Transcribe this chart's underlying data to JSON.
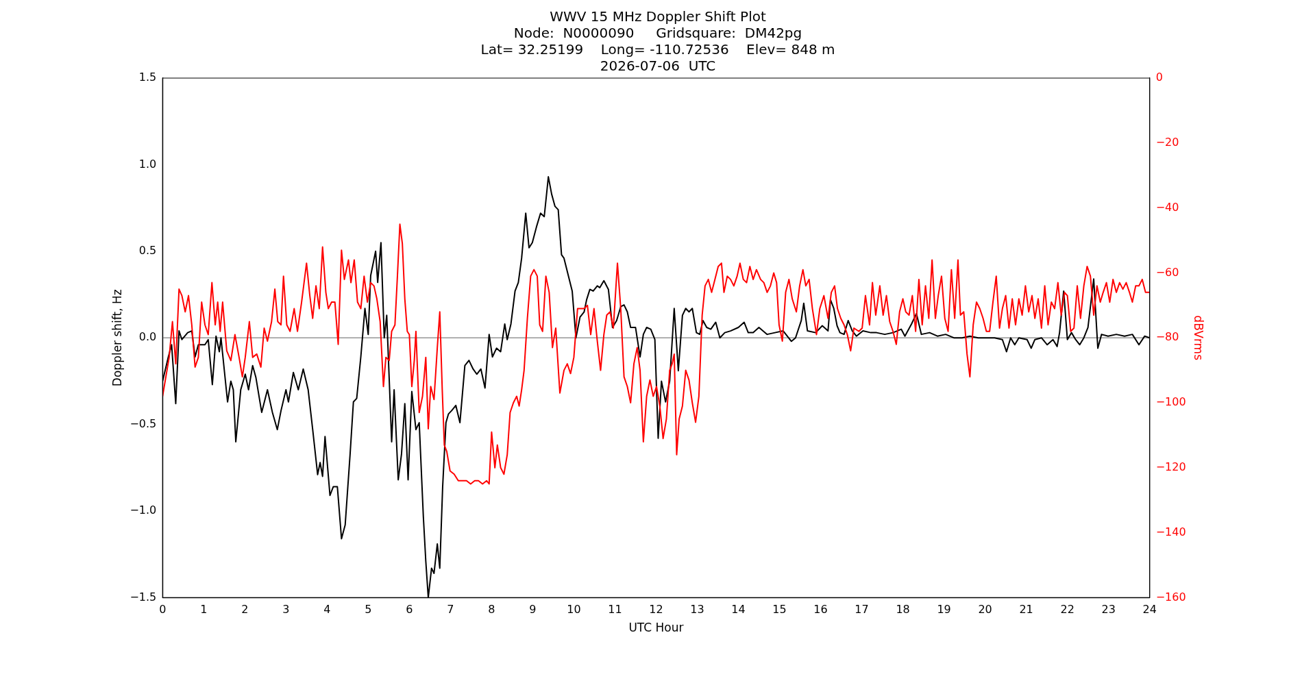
{
  "chart_data": {
    "type": "line",
    "title": "WWV 15 MHz Doppler Shift Plot\nNode:  N0000090     Gridsquare:  DM42pg\nLat= 32.25199    Long= -110.72536    Elev= 848 m\n2026-07-06  UTC",
    "xlabel": "UTC Hour",
    "ylabel": "Doppler shift, Hz",
    "y2label": "dBVrms",
    "xlim": [
      0,
      24
    ],
    "xticks": [
      0,
      1,
      2,
      3,
      4,
      5,
      6,
      7,
      8,
      9,
      10,
      11,
      12,
      13,
      14,
      15,
      16,
      17,
      18,
      19,
      20,
      21,
      22,
      23,
      24
    ],
    "ylim": [
      -1.5,
      1.5
    ],
    "yticks": [
      {
        "value": -1.5,
        "label": "−1.5"
      },
      {
        "value": -1,
        "label": "−1.0"
      },
      {
        "value": -0.5,
        "label": "−0.5"
      },
      {
        "value": 0,
        "label": "0.0"
      },
      {
        "value": 0.5,
        "label": "0.5"
      },
      {
        "value": 1,
        "label": "1.0"
      },
      {
        "value": 1.5,
        "label": "1.5"
      }
    ],
    "y2lim": [
      -160,
      0
    ],
    "y2ticks": [
      {
        "value": -160,
        "label": "−160"
      },
      {
        "value": -140,
        "label": "−140"
      },
      {
        "value": -120,
        "label": "−120"
      },
      {
        "value": -100,
        "label": "−100"
      },
      {
        "value": -80,
        "label": "−80"
      },
      {
        "value": -60,
        "label": "−60"
      },
      {
        "value": -40,
        "label": "−40"
      },
      {
        "value": -20,
        "label": "−20"
      },
      {
        "value": 0,
        "label": "0"
      }
    ],
    "grid": false,
    "legend": false,
    "line_style": "solid",
    "marker": "none",
    "ref_lines": [
      {
        "axis": "y",
        "value": 0,
        "color": "#808080"
      }
    ],
    "series": [
      {
        "color": "#ff0000",
        "axis": "y2",
        "x": [
          0,
          0.08,
          0.16,
          0.24,
          0.32,
          0.4,
          0.47,
          0.55,
          0.63,
          0.71,
          0.79,
          0.87,
          0.95,
          1.03,
          1.11,
          1.2,
          1.28,
          1.34,
          1.4,
          1.46,
          1.56,
          1.66,
          1.76,
          1.86,
          1.94,
          2.01,
          2.11,
          2.19,
          2.29,
          2.39,
          2.47,
          2.55,
          2.65,
          2.73,
          2.8,
          2.88,
          2.94,
          3.02,
          3.1,
          3.2,
          3.28,
          3.38,
          3.5,
          3.58,
          3.65,
          3.73,
          3.81,
          3.89,
          3.97,
          4.03,
          4.11,
          4.19,
          4.27,
          4.35,
          4.42,
          4.52,
          4.58,
          4.66,
          4.74,
          4.82,
          4.9,
          4.98,
          5.06,
          5.14,
          5.21,
          5.29,
          5.37,
          5.43,
          5.51,
          5.57,
          5.65,
          5.71,
          5.77,
          5.83,
          5.89,
          5.95,
          6.0,
          6.06,
          6.12,
          6.16,
          6.24,
          6.32,
          6.4,
          6.46,
          6.52,
          6.6,
          6.68,
          6.74,
          6.8,
          6.85,
          6.91,
          6.99,
          7.09,
          7.19,
          7.29,
          7.39,
          7.49,
          7.59,
          7.68,
          7.78,
          7.88,
          7.94,
          8.0,
          8.08,
          8.14,
          8.22,
          8.3,
          8.38,
          8.45,
          8.53,
          8.61,
          8.67,
          8.73,
          8.79,
          8.87,
          8.95,
          9.03,
          9.11,
          9.17,
          9.24,
          9.32,
          9.4,
          9.48,
          9.56,
          9.66,
          9.76,
          9.84,
          9.92,
          10.0,
          10.09,
          10.17,
          10.25,
          10.33,
          10.41,
          10.49,
          10.57,
          10.65,
          10.73,
          10.8,
          10.88,
          10.96,
          11.06,
          11.14,
          11.22,
          11.3,
          11.38,
          11.46,
          11.54,
          11.61,
          11.69,
          11.77,
          11.85,
          11.93,
          12.01,
          12.09,
          12.17,
          12.25,
          12.33,
          12.39,
          12.44,
          12.5,
          12.56,
          12.64,
          12.72,
          12.8,
          12.88,
          12.96,
          13.04,
          13.12,
          13.19,
          13.27,
          13.35,
          13.43,
          13.51,
          13.59,
          13.65,
          13.73,
          13.81,
          13.89,
          13.97,
          14.04,
          14.12,
          14.2,
          14.28,
          14.36,
          14.44,
          14.54,
          14.62,
          14.7,
          14.78,
          14.86,
          14.93,
          14.99,
          15.07,
          15.15,
          15.23,
          15.31,
          15.41,
          15.49,
          15.57,
          15.64,
          15.72,
          15.8,
          15.9,
          15.98,
          16.08,
          16.18,
          16.26,
          16.34,
          16.41,
          16.49,
          16.57,
          16.65,
          16.73,
          16.81,
          16.93,
          17.01,
          17.09,
          17.19,
          17.26,
          17.34,
          17.44,
          17.52,
          17.6,
          17.68,
          17.76,
          17.84,
          17.92,
          18.0,
          18.07,
          18.15,
          18.23,
          18.31,
          18.39,
          18.47,
          18.55,
          18.63,
          18.71,
          18.79,
          18.86,
          18.94,
          19.02,
          19.1,
          19.18,
          19.26,
          19.34,
          19.4,
          19.48,
          19.56,
          19.63,
          19.71,
          19.79,
          19.87,
          19.95,
          20.03,
          20.11,
          20.19,
          20.27,
          20.35,
          20.42,
          20.5,
          20.58,
          20.66,
          20.74,
          20.82,
          20.9,
          20.98,
          21.06,
          21.14,
          21.21,
          21.29,
          21.37,
          21.45,
          21.53,
          21.61,
          21.69,
          21.77,
          21.85,
          21.93,
          22.0,
          22.08,
          22.16,
          22.24,
          22.32,
          22.4,
          22.48,
          22.56,
          22.64,
          22.72,
          22.8,
          22.87,
          22.95,
          23.03,
          23.11,
          23.19,
          23.27,
          23.35,
          23.43,
          23.51,
          23.58,
          23.66,
          23.74,
          23.82,
          23.9,
          24.0
        ],
        "values": [
          -98,
          -92,
          -86,
          -75,
          -88,
          -65,
          -67,
          -72,
          -67,
          -76,
          -89,
          -86,
          -69,
          -76,
          -79,
          -63,
          -76,
          -69,
          -78,
          -69,
          -84,
          -87,
          -79,
          -86,
          -92,
          -86,
          -75,
          -86,
          -85,
          -89,
          -77,
          -81,
          -75,
          -65,
          -75,
          -76,
          -61,
          -76,
          -78,
          -71,
          -78,
          -69,
          -57,
          -67,
          -74,
          -64,
          -71,
          -52,
          -66,
          -71,
          -69,
          -69,
          -82,
          -53,
          -62,
          -56,
          -63,
          -56,
          -69,
          -71,
          -61,
          -69,
          -63,
          -64,
          -68,
          -75,
          -95,
          -86,
          -87,
          -78,
          -76,
          -61,
          -45,
          -51,
          -68,
          -78,
          -79,
          -95,
          -87,
          -78,
          -103,
          -98,
          -86,
          -108,
          -95,
          -99,
          -83,
          -72,
          -96,
          -113,
          -115,
          -121,
          -122,
          -124,
          -124,
          -124,
          -125,
          -124,
          -124,
          -125,
          -124,
          -125,
          -109,
          -120,
          -113,
          -120,
          -122,
          -116,
          -103,
          -100,
          -98,
          -101,
          -96,
          -90,
          -74,
          -61,
          -59,
          -61,
          -76,
          -78,
          -61,
          -66,
          -83,
          -77,
          -97,
          -90,
          -88,
          -91,
          -86,
          -71,
          -71,
          -71,
          -70,
          -79,
          -71,
          -81,
          -90,
          -79,
          -73,
          -72,
          -77,
          -57,
          -71,
          -92,
          -95,
          -100,
          -88,
          -83,
          -90,
          -112,
          -98,
          -93,
          -98,
          -95,
          -101,
          -111,
          -105,
          -90,
          -88,
          -85,
          -116,
          -105,
          -101,
          -90,
          -93,
          -100,
          -106,
          -98,
          -73,
          -64,
          -62,
          -66,
          -62,
          -58,
          -57,
          -66,
          -61,
          -62,
          -64,
          -61,
          -57,
          -62,
          -63,
          -58,
          -62,
          -59,
          -62,
          -63,
          -66,
          -64,
          -60,
          -63,
          -76,
          -81,
          -66,
          -62,
          -68,
          -72,
          -64,
          -59,
          -64,
          -62,
          -71,
          -79,
          -71,
          -67,
          -74,
          -66,
          -64,
          -71,
          -74,
          -76,
          -79,
          -84,
          -77,
          -78,
          -77,
          -67,
          -76,
          -63,
          -73,
          -64,
          -73,
          -67,
          -75,
          -78,
          -82,
          -72,
          -68,
          -72,
          -73,
          -67,
          -78,
          -62,
          -76,
          -64,
          -74,
          -56,
          -74,
          -67,
          -61,
          -74,
          -78,
          -59,
          -74,
          -56,
          -73,
          -72,
          -85,
          -92,
          -76,
          -69,
          -71,
          -74,
          -78,
          -78,
          -69,
          -61,
          -77,
          -71,
          -67,
          -77,
          -68,
          -76,
          -68,
          -73,
          -64,
          -72,
          -67,
          -74,
          -68,
          -77,
          -64,
          -76,
          -69,
          -71,
          -63,
          -73,
          -66,
          -67,
          -78,
          -77,
          -64,
          -74,
          -64,
          -58,
          -61,
          -73,
          -64,
          -69,
          -66,
          -63,
          -69,
          -62,
          -66,
          -63,
          -65,
          -63,
          -66,
          -69,
          -64,
          -64,
          -62,
          -66,
          -66
        ]
      },
      {
        "color": "#000000",
        "x": [
          0,
          0.14,
          0.22,
          0.32,
          0.4,
          0.47,
          0.61,
          0.71,
          0.79,
          0.87,
          1.03,
          1.11,
          1.21,
          1.3,
          1.38,
          1.42,
          1.58,
          1.66,
          1.72,
          1.78,
          1.9,
          2.01,
          2.09,
          2.19,
          2.27,
          2.41,
          2.55,
          2.67,
          2.79,
          2.88,
          3.0,
          3.06,
          3.18,
          3.3,
          3.42,
          3.54,
          3.65,
          3.77,
          3.83,
          3.89,
          3.95,
          4.07,
          4.15,
          4.25,
          4.35,
          4.44,
          4.56,
          4.64,
          4.72,
          4.82,
          4.92,
          5.0,
          5.06,
          5.18,
          5.23,
          5.31,
          5.39,
          5.45,
          5.57,
          5.63,
          5.73,
          5.81,
          5.89,
          5.97,
          6.06,
          6.16,
          6.24,
          6.34,
          6.4,
          6.46,
          6.54,
          6.6,
          6.68,
          6.74,
          6.81,
          6.89,
          6.95,
          7.03,
          7.13,
          7.23,
          7.35,
          7.45,
          7.55,
          7.64,
          7.74,
          7.84,
          7.94,
          8.02,
          8.12,
          8.22,
          8.32,
          8.38,
          8.47,
          8.57,
          8.65,
          8.73,
          8.83,
          8.91,
          8.99,
          9.09,
          9.19,
          9.28,
          9.38,
          9.46,
          9.54,
          9.62,
          9.7,
          9.76,
          9.96,
          10.05,
          10.15,
          10.25,
          10.31,
          10.39,
          10.47,
          10.57,
          10.63,
          10.73,
          10.84,
          10.94,
          11.04,
          11.14,
          11.22,
          11.3,
          11.38,
          11.5,
          11.61,
          11.69,
          11.77,
          11.87,
          11.97,
          12.05,
          12.13,
          12.23,
          12.33,
          12.44,
          12.54,
          12.64,
          12.72,
          12.8,
          12.88,
          12.98,
          13.06,
          13.14,
          13.23,
          13.33,
          13.45,
          13.55,
          13.67,
          13.81,
          14.0,
          14.14,
          14.24,
          14.36,
          14.5,
          14.7,
          14.89,
          15.09,
          15.29,
          15.39,
          15.53,
          15.59,
          15.68,
          15.88,
          16.04,
          16.18,
          16.24,
          16.32,
          16.4,
          16.47,
          16.57,
          16.67,
          16.77,
          16.87,
          17.03,
          17.22,
          17.36,
          17.56,
          17.76,
          17.96,
          18.05,
          18.21,
          18.33,
          18.45,
          18.65,
          18.84,
          19.04,
          19.24,
          19.44,
          19.63,
          19.83,
          20.03,
          20.23,
          20.42,
          20.52,
          20.62,
          20.72,
          20.82,
          21.02,
          21.12,
          21.21,
          21.37,
          21.51,
          21.65,
          21.75,
          21.81,
          21.91,
          22.0,
          22.1,
          22.2,
          22.3,
          22.4,
          22.5,
          22.64,
          22.74,
          22.83,
          22.99,
          23.19,
          23.39,
          23.58,
          23.74,
          23.88,
          24.0
        ],
        "values": [
          -0.25,
          -0.11,
          -0.04,
          -0.38,
          0.04,
          -0.01,
          0.03,
          0.04,
          -0.11,
          -0.04,
          -0.04,
          -0.01,
          -0.27,
          0.01,
          -0.08,
          0.0,
          -0.37,
          -0.25,
          -0.3,
          -0.6,
          -0.3,
          -0.21,
          -0.3,
          -0.16,
          -0.23,
          -0.43,
          -0.3,
          -0.43,
          -0.53,
          -0.42,
          -0.3,
          -0.37,
          -0.2,
          -0.3,
          -0.18,
          -0.3,
          -0.53,
          -0.79,
          -0.72,
          -0.8,
          -0.57,
          -0.91,
          -0.86,
          -0.86,
          -1.16,
          -1.08,
          -0.67,
          -0.37,
          -0.35,
          -0.11,
          0.17,
          0.02,
          0.36,
          0.5,
          0.32,
          0.55,
          0.0,
          0.13,
          -0.6,
          -0.3,
          -0.82,
          -0.67,
          -0.38,
          -0.82,
          -0.31,
          -0.53,
          -0.49,
          -1.03,
          -1.29,
          -1.5,
          -1.33,
          -1.36,
          -1.19,
          -1.33,
          -0.86,
          -0.49,
          -0.44,
          -0.42,
          -0.39,
          -0.49,
          -0.16,
          -0.13,
          -0.18,
          -0.21,
          -0.18,
          -0.29,
          0.02,
          -0.11,
          -0.06,
          -0.08,
          0.08,
          -0.01,
          0.08,
          0.27,
          0.32,
          0.46,
          0.72,
          0.52,
          0.55,
          0.64,
          0.72,
          0.7,
          0.93,
          0.83,
          0.76,
          0.74,
          0.48,
          0.46,
          0.27,
          0.0,
          0.12,
          0.15,
          0.22,
          0.28,
          0.27,
          0.3,
          0.29,
          0.33,
          0.28,
          0.06,
          0.1,
          0.18,
          0.19,
          0.15,
          0.06,
          0.06,
          -0.11,
          0.02,
          0.06,
          0.05,
          -0.01,
          -0.58,
          -0.25,
          -0.37,
          -0.25,
          0.17,
          -0.19,
          0.13,
          0.17,
          0.15,
          0.17,
          0.03,
          0.02,
          0.1,
          0.06,
          0.05,
          0.09,
          0.0,
          0.03,
          0.04,
          0.06,
          0.09,
          0.03,
          0.03,
          0.06,
          0.02,
          0.03,
          0.04,
          -0.02,
          0.0,
          0.1,
          0.2,
          0.04,
          0.03,
          0.07,
          0.04,
          0.22,
          0.17,
          0.07,
          0.03,
          0.02,
          0.1,
          0.04,
          0.01,
          0.04,
          0.03,
          0.03,
          0.02,
          0.03,
          0.05,
          0.01,
          0.08,
          0.14,
          0.02,
          0.03,
          0.01,
          0.02,
          0.0,
          0.0,
          0.01,
          0.0,
          0.0,
          0.0,
          -0.01,
          -0.08,
          0.0,
          -0.04,
          0.0,
          -0.01,
          -0.06,
          -0.01,
          0.0,
          -0.04,
          -0.01,
          -0.05,
          0.03,
          0.27,
          -0.01,
          0.03,
          -0.01,
          -0.04,
          0.0,
          0.06,
          0.34,
          -0.06,
          0.02,
          0.01,
          0.02,
          0.01,
          0.02,
          -0.04,
          0.01,
          0.0
        ]
      }
    ]
  }
}
